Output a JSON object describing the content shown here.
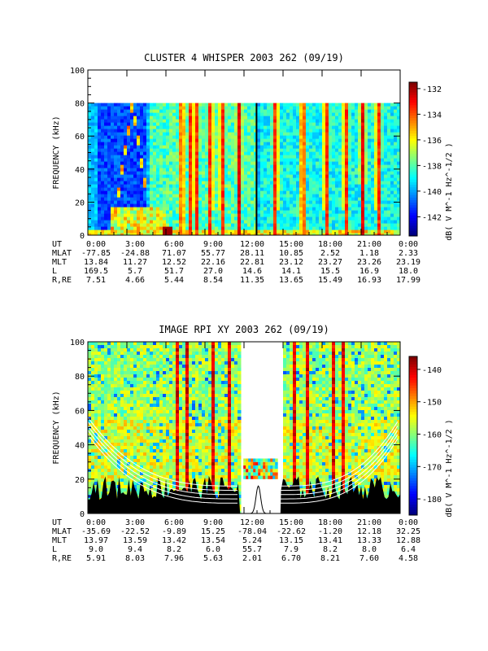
{
  "chart_data": [
    {
      "type": "heatmap",
      "title": "CLUSTER 4 WHISPER 2003 262 (09/19)",
      "ylabel": "FREQUENCY (kHz)",
      "ylim": [
        0,
        100
      ],
      "yticks": [
        "0",
        "20",
        "40",
        "60",
        "80",
        "100"
      ],
      "data_ylim": [
        0,
        80
      ],
      "colorbar": {
        "label": "dB( V M^-1 Hz^-1/2 )",
        "range": [
          -143.5,
          -131.5
        ],
        "ticks": [
          "-132",
          "-134",
          "-136",
          "-138",
          "-140",
          "-142"
        ],
        "tick_values": [
          -132,
          -134,
          -136,
          -138,
          -140,
          -142
        ]
      },
      "ephemeris": {
        "rows": [
          "UT",
          "MLAT",
          "MLT",
          "L",
          "R,RE"
        ],
        "UT": [
          "0:00",
          "3:00",
          "6:00",
          "9:00",
          "12:00",
          "15:00",
          "18:00",
          "21:00",
          "0:00"
        ],
        "MLAT": [
          "-77.85",
          "-24.88",
          "71.07",
          "55.77",
          "28.11",
          "10.85",
          "2.52",
          "1.18",
          "2.33"
        ],
        "MLT": [
          "13.84",
          "11.27",
          "12.52",
          "22.16",
          "22.81",
          "23.12",
          "23.27",
          "23.26",
          "23.19"
        ],
        "L": [
          "169.5",
          "5.7",
          "51.7",
          "27.0",
          "14.6",
          "14.1",
          "15.5",
          "16.9",
          "18.0"
        ],
        "R,RE": [
          "7.51",
          "4.66",
          "5.44",
          "8.54",
          "11.35",
          "13.65",
          "15.49",
          "16.93",
          "17.99"
        ]
      }
    },
    {
      "type": "heatmap",
      "title": "IMAGE RPI XY 2003 262 (09/19)",
      "ylabel": "FREQUENCY (kHz)",
      "ylim": [
        0,
        100
      ],
      "yticks": [
        "0",
        "20",
        "40",
        "60",
        "80",
        "100"
      ],
      "data_gap_hours": [
        11.7,
        14.8
      ],
      "colorbar": {
        "label": "dB( V M^-1 Hz^-1/2 )",
        "range": [
          -185,
          -136
        ],
        "ticks": [
          "-140",
          "-150",
          "-160",
          "-170",
          "-180"
        ],
        "tick_values": [
          -140,
          -150,
          -160,
          -170,
          -180
        ]
      },
      "ephemeris": {
        "rows": [
          "UT",
          "MLAT",
          "MLT",
          "L",
          "R,RE"
        ],
        "UT": [
          "0:00",
          "3:00",
          "6:00",
          "9:00",
          "12:00",
          "15:00",
          "18:00",
          "21:00",
          "0:00"
        ],
        "MLAT": [
          "-35.69",
          "-22.52",
          "-9.89",
          "15.25",
          "-78.04",
          "-22.62",
          "-1.20",
          "12.18",
          "32.25"
        ],
        "MLT": [
          "13.97",
          "13.59",
          "13.42",
          "13.54",
          "5.24",
          "13.15",
          "13.41",
          "13.33",
          "12.88"
        ],
        "L": [
          "9.0",
          "9.4",
          "8.2",
          "6.0",
          "55.7",
          "7.9",
          "8.2",
          "8.0",
          "6.4"
        ],
        "R,RE": [
          "5.91",
          "8.03",
          "7.96",
          "5.63",
          "2.01",
          "6.70",
          "8.21",
          "7.60",
          "4.58"
        ]
      }
    }
  ]
}
